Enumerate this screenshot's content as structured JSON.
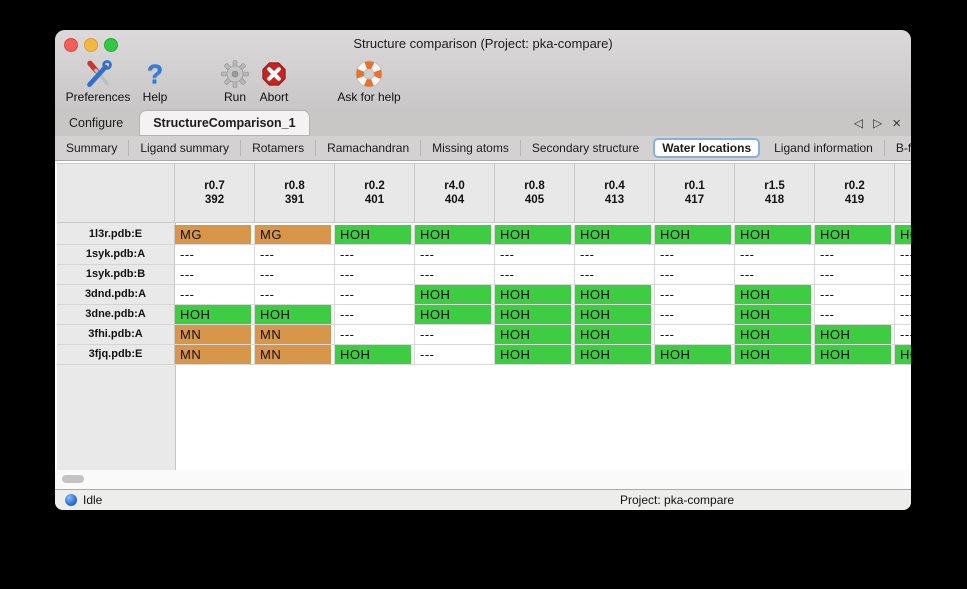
{
  "window": {
    "title": "Structure comparison (Project: pka-compare)"
  },
  "toolbar": {
    "items": [
      {
        "label": "Preferences",
        "icon": "tools-icon"
      },
      {
        "label": "Help",
        "icon": "help-icon"
      },
      {
        "label": "Run",
        "icon": "gear-icon"
      },
      {
        "label": "Abort",
        "icon": "abort-icon"
      },
      {
        "label": "Ask for help",
        "icon": "lifebuoy-icon"
      }
    ]
  },
  "tabs": {
    "items": [
      {
        "label": "Configure",
        "active": false
      },
      {
        "label": "StructureComparison_1",
        "active": true
      }
    ],
    "nav_left": "◁",
    "nav_right": "▷",
    "close": "×"
  },
  "subtabs": {
    "items": [
      "Summary",
      "Ligand summary",
      "Rotamers",
      "Ramachandran",
      "Missing atoms",
      "Secondary structure",
      "Water locations",
      "Ligand information",
      "B-factors"
    ],
    "selected": "Water locations",
    "nav_left": "◁",
    "nav_right": "▷"
  },
  "colors": {
    "green": "#3ecc43",
    "orange": "#d8964b"
  },
  "table": {
    "columns": [
      {
        "line1": "r0.7",
        "line2": "392"
      },
      {
        "line1": "r0.8",
        "line2": "391"
      },
      {
        "line1": "r0.2",
        "line2": "401"
      },
      {
        "line1": "r4.0",
        "line2": "404"
      },
      {
        "line1": "r0.8",
        "line2": "405"
      },
      {
        "line1": "r0.4",
        "line2": "413"
      },
      {
        "line1": "r0.1",
        "line2": "417"
      },
      {
        "line1": "r1.5",
        "line2": "418"
      },
      {
        "line1": "r0.2",
        "line2": "419"
      },
      {
        "line1": "",
        "line2": ""
      }
    ],
    "rows": [
      {
        "label": "1l3r.pdb:E",
        "cells": [
          {
            "v": "MG",
            "bg": "orange"
          },
          {
            "v": "MG",
            "bg": "orange"
          },
          {
            "v": "HOH",
            "bg": "green"
          },
          {
            "v": "HOH",
            "bg": "green"
          },
          {
            "v": "HOH",
            "bg": "green"
          },
          {
            "v": "HOH",
            "bg": "green"
          },
          {
            "v": "HOH",
            "bg": "green"
          },
          {
            "v": "HOH",
            "bg": "green"
          },
          {
            "v": "HOH",
            "bg": "green"
          },
          {
            "v": "HOH",
            "bg": "green"
          }
        ]
      },
      {
        "label": "1syk.pdb:A",
        "cells": [
          {
            "v": "---",
            "bg": null
          },
          {
            "v": "---",
            "bg": null
          },
          {
            "v": "---",
            "bg": null
          },
          {
            "v": "---",
            "bg": null
          },
          {
            "v": "---",
            "bg": null
          },
          {
            "v": "---",
            "bg": null
          },
          {
            "v": "---",
            "bg": null
          },
          {
            "v": "---",
            "bg": null
          },
          {
            "v": "---",
            "bg": null
          },
          {
            "v": "---",
            "bg": null
          }
        ]
      },
      {
        "label": "1syk.pdb:B",
        "cells": [
          {
            "v": "---",
            "bg": null
          },
          {
            "v": "---",
            "bg": null
          },
          {
            "v": "---",
            "bg": null
          },
          {
            "v": "---",
            "bg": null
          },
          {
            "v": "---",
            "bg": null
          },
          {
            "v": "---",
            "bg": null
          },
          {
            "v": "---",
            "bg": null
          },
          {
            "v": "---",
            "bg": null
          },
          {
            "v": "---",
            "bg": null
          },
          {
            "v": "---",
            "bg": null
          }
        ]
      },
      {
        "label": "3dnd.pdb:A",
        "cells": [
          {
            "v": "---",
            "bg": null
          },
          {
            "v": "---",
            "bg": null
          },
          {
            "v": "---",
            "bg": null
          },
          {
            "v": "HOH",
            "bg": "green"
          },
          {
            "v": "HOH",
            "bg": "green"
          },
          {
            "v": "HOH",
            "bg": "green"
          },
          {
            "v": "---",
            "bg": null
          },
          {
            "v": "HOH",
            "bg": "green"
          },
          {
            "v": "---",
            "bg": null
          },
          {
            "v": "---",
            "bg": null
          }
        ]
      },
      {
        "label": "3dne.pdb:A",
        "cells": [
          {
            "v": "HOH",
            "bg": "green"
          },
          {
            "v": "HOH",
            "bg": "green"
          },
          {
            "v": "---",
            "bg": null
          },
          {
            "v": "HOH",
            "bg": "green"
          },
          {
            "v": "HOH",
            "bg": "green"
          },
          {
            "v": "HOH",
            "bg": "green"
          },
          {
            "v": "---",
            "bg": null
          },
          {
            "v": "HOH",
            "bg": "green"
          },
          {
            "v": "---",
            "bg": null
          },
          {
            "v": "---",
            "bg": null
          }
        ]
      },
      {
        "label": "3fhi.pdb:A",
        "cells": [
          {
            "v": "MN",
            "bg": "orange"
          },
          {
            "v": "MN",
            "bg": "orange"
          },
          {
            "v": "---",
            "bg": null
          },
          {
            "v": "---",
            "bg": null
          },
          {
            "v": "HOH",
            "bg": "green"
          },
          {
            "v": "HOH",
            "bg": "green"
          },
          {
            "v": "---",
            "bg": null
          },
          {
            "v": "HOH",
            "bg": "green"
          },
          {
            "v": "HOH",
            "bg": "green"
          },
          {
            "v": "---",
            "bg": null
          }
        ]
      },
      {
        "label": "3fjq.pdb:E",
        "cells": [
          {
            "v": "MN",
            "bg": "orange"
          },
          {
            "v": "MN",
            "bg": "orange"
          },
          {
            "v": "HOH",
            "bg": "green"
          },
          {
            "v": "---",
            "bg": null
          },
          {
            "v": "HOH",
            "bg": "green"
          },
          {
            "v": "HOH",
            "bg": "green"
          },
          {
            "v": "HOH",
            "bg": "green"
          },
          {
            "v": "HOH",
            "bg": "green"
          },
          {
            "v": "HOH",
            "bg": "green"
          },
          {
            "v": "HOH",
            "bg": "green"
          }
        ]
      }
    ]
  },
  "statusbar": {
    "status": "Idle",
    "project": "Project: pka-compare"
  }
}
